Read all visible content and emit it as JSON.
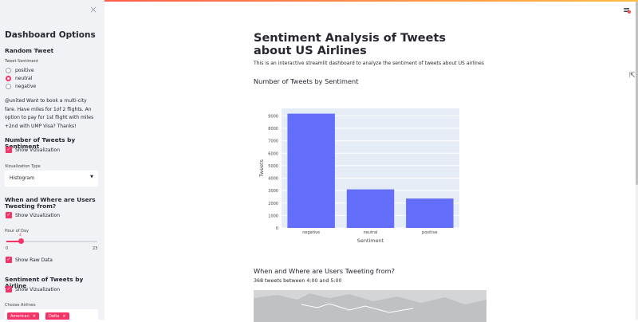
{
  "sidebar": {
    "close_icon": "×",
    "title": "Dashboard Options",
    "random_tweet": {
      "heading": "Random Tweet",
      "label": "Tweet Sentiment",
      "options": [
        "positive",
        "neutral",
        "negative"
      ],
      "selected": "neutral",
      "tweet_text": "@united Want to book a multi-city fare. Have miles for 1of 2 flights. An option to pay for 1st flight with miles +2nd with UMP Visa? Thanks!"
    },
    "num_tweets": {
      "heading": "Number of Tweets by Sentiment",
      "checkbox_label": "Show Vizualization",
      "viz_type_label": "Vizualization Type",
      "viz_type_value": "Histogram"
    },
    "when_where": {
      "heading": "When and Where are Users Tweeting from?",
      "checkbox_label": "Show Vizualization",
      "slider_label": "Hour of Day",
      "slider_min": "0",
      "slider_max": "23",
      "slider_value": "4",
      "raw_data_label": "Show Raw Data"
    },
    "airline": {
      "heading": "Sentiment of Tweets by Airline",
      "checkbox_label": "Show Vizualization",
      "choose_label": "Choose Airlines",
      "tags": [
        "American",
        "Delta"
      ]
    }
  },
  "main": {
    "title": "Sentiment Analysis of Tweets about US Airlines",
    "subtitle": "This is an interactive streamlit dashboard to analyze the sentiment of tweets about US airlines",
    "section1_heading": "Number of Tweets by Sentiment",
    "section2_heading": "When and Where are Users Tweeting from?",
    "section2_text": "368 tweets between 4:00 and 5:00"
  },
  "icons": {
    "menu": "hamburger-menu-icon",
    "close": "close-icon",
    "caret": "chevron-down-icon"
  },
  "colors": {
    "accent": "#f63366",
    "bar": "#636efa",
    "plot_bg": "#e5ecf6",
    "sidebar_bg": "#f0f2f6"
  },
  "chart_data": {
    "type": "bar",
    "categories": [
      "negative",
      "neutral",
      "positive"
    ],
    "values": [
      9178,
      3099,
      2363
    ],
    "xlabel": "Sentiment",
    "ylabel": "Tweets",
    "ylim": [
      0,
      9600
    ],
    "yticks": [
      0,
      1000,
      2000,
      3000,
      4000,
      5000,
      6000,
      7000,
      8000,
      9000
    ]
  }
}
